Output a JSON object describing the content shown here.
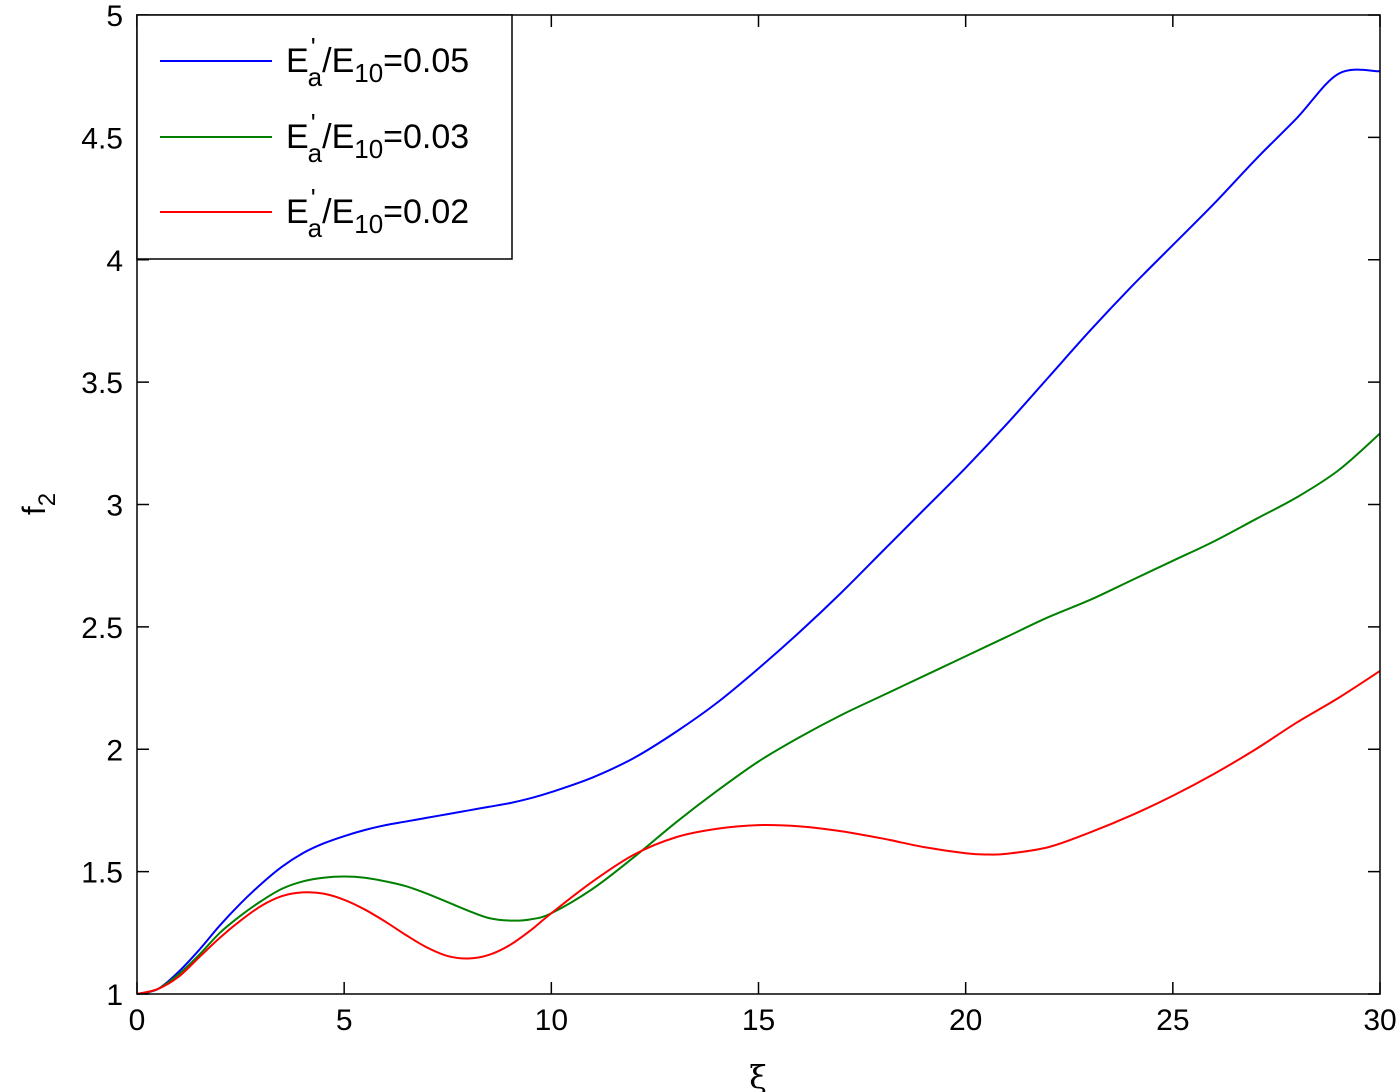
{
  "chart_data": {
    "type": "line",
    "xlabel": "ξ",
    "ylabel": {
      "main": "f",
      "sub": "2"
    },
    "xlim": [
      0,
      30
    ],
    "ylim": [
      1,
      5
    ],
    "xticks": [
      "0",
      "5",
      "10",
      "15",
      "20",
      "25",
      "30"
    ],
    "yticks": [
      "1",
      "1.5",
      "2",
      "2.5",
      "3",
      "3.5",
      "4",
      "4.5",
      "5"
    ],
    "grid": false,
    "legend_position": "top-left",
    "series": [
      {
        "name": "E'a/E10=0.05",
        "legend": {
          "base": "E",
          "prime": "'",
          "sub1": "a",
          "mid": "/E",
          "sub2": "10",
          "tail": "=0.05"
        },
        "color": "#0000ff",
        "x": [
          0,
          0.5,
          1,
          1.5,
          2,
          2.5,
          3,
          3.5,
          4,
          4.5,
          5,
          5.5,
          6,
          6.5,
          7,
          7.5,
          8,
          8.5,
          9,
          9.5,
          10,
          11,
          12,
          13,
          14,
          15,
          16,
          17,
          18,
          19,
          20,
          21,
          22,
          23,
          24,
          25,
          26,
          27,
          28,
          29,
          30
        ],
        "y": [
          1.0,
          1.02,
          1.09,
          1.18,
          1.28,
          1.37,
          1.45,
          1.52,
          1.575,
          1.615,
          1.645,
          1.67,
          1.69,
          1.705,
          1.72,
          1.735,
          1.75,
          1.765,
          1.78,
          1.8,
          1.825,
          1.885,
          1.965,
          2.07,
          2.19,
          2.33,
          2.48,
          2.64,
          2.81,
          2.98,
          3.15,
          3.33,
          3.52,
          3.71,
          3.89,
          4.06,
          4.23,
          4.41,
          4.58,
          4.76,
          4.77
        ]
      },
      {
        "name": "E'a/E10=0.03",
        "legend": {
          "base": "E",
          "prime": "'",
          "sub1": "a",
          "mid": "/E",
          "sub2": "10",
          "tail": "=0.03"
        },
        "color": "#008000",
        "x": [
          0,
          0.5,
          1,
          1.5,
          2,
          2.5,
          3,
          3.5,
          4,
          4.5,
          5,
          5.5,
          6,
          6.5,
          7,
          7.5,
          8,
          8.5,
          9,
          9.5,
          10,
          11,
          12,
          13,
          14,
          15,
          16,
          17,
          18,
          19,
          20,
          21,
          22,
          23,
          24,
          25,
          26,
          27,
          28,
          29,
          30
        ],
        "y": [
          1.0,
          1.02,
          1.08,
          1.16,
          1.25,
          1.32,
          1.38,
          1.43,
          1.46,
          1.475,
          1.48,
          1.475,
          1.46,
          1.44,
          1.41,
          1.375,
          1.34,
          1.31,
          1.3,
          1.305,
          1.33,
          1.43,
          1.56,
          1.7,
          1.83,
          1.95,
          2.05,
          2.14,
          2.22,
          2.3,
          2.38,
          2.46,
          2.54,
          2.61,
          2.69,
          2.77,
          2.85,
          2.94,
          3.03,
          3.14,
          3.29
        ]
      },
      {
        "name": "E'a/E10=0.02",
        "legend": {
          "base": "E",
          "prime": "'",
          "sub1": "a",
          "mid": "/E",
          "sub2": "10",
          "tail": "=0.02"
        },
        "color": "#ff0000",
        "x": [
          0,
          0.5,
          1,
          1.5,
          2,
          2.5,
          3,
          3.5,
          4,
          4.5,
          5,
          5.5,
          6,
          6.5,
          7,
          7.5,
          8,
          8.5,
          9,
          9.5,
          10,
          11,
          12,
          13,
          14,
          15,
          16,
          17,
          18,
          19,
          20,
          20.5,
          21,
          22,
          23,
          24,
          25,
          26,
          27,
          28,
          29,
          30
        ],
        "y": [
          1.0,
          1.02,
          1.07,
          1.15,
          1.23,
          1.3,
          1.36,
          1.4,
          1.415,
          1.41,
          1.385,
          1.345,
          1.295,
          1.24,
          1.19,
          1.155,
          1.145,
          1.16,
          1.2,
          1.26,
          1.33,
          1.46,
          1.57,
          1.64,
          1.675,
          1.69,
          1.685,
          1.665,
          1.635,
          1.6,
          1.575,
          1.57,
          1.573,
          1.6,
          1.66,
          1.73,
          1.81,
          1.9,
          2.0,
          2.11,
          2.21,
          2.32
        ]
      }
    ]
  }
}
